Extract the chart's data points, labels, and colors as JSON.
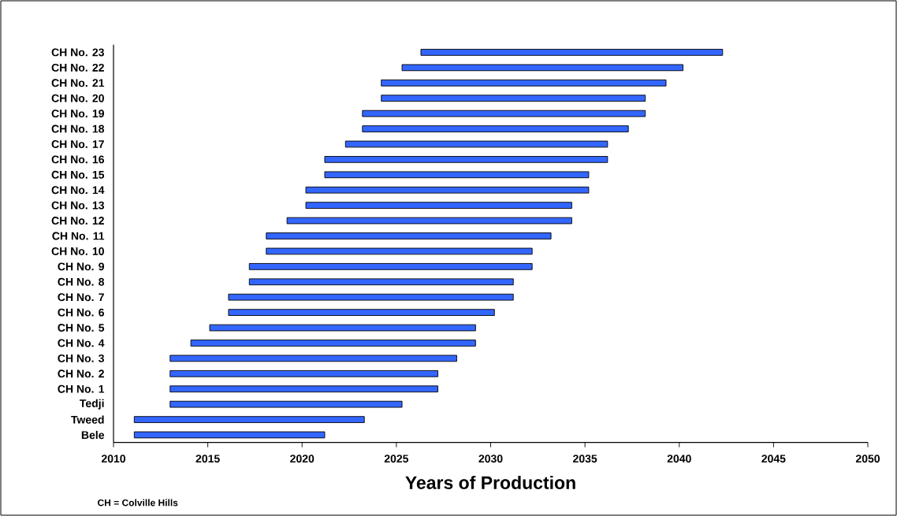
{
  "chart_data": {
    "type": "bar",
    "orientation": "horizontal",
    "xlabel": "Years of Production",
    "annotations": [
      "CH = Colville Hills"
    ],
    "color": "#3366ff",
    "categories": [
      "CH No. 23",
      "CH No. 22",
      "CH No. 21",
      "CH No. 20",
      "CH No. 19",
      "CH No. 18",
      "CH No. 17",
      "CH No. 16",
      "CH No. 15",
      "CH No. 14",
      "CH No. 13",
      "CH No. 12",
      "CH No. 11",
      "CH No. 10",
      "CH No. 9",
      "CH No. 8",
      "CH No. 7",
      "CH No. 6",
      "CH No. 5",
      "CH No. 4",
      "CH No. 3",
      "CH No. 2",
      "CH No. 1",
      "Tedji",
      "Tweed",
      "Bele"
    ],
    "base": [
      2026.3,
      2025.3,
      2024.2,
      2024.2,
      2023.2,
      2023.2,
      2022.3,
      2021.2,
      2021.2,
      2020.2,
      2020.2,
      2019.2,
      2018.1,
      2018.1,
      2017.2,
      2017.2,
      2016.1,
      2016.1,
      2015.1,
      2014.1,
      2013.0,
      2013.0,
      2013.0,
      2013.0,
      2011.1,
      2011.1
    ],
    "values": [
      16.0,
      14.9,
      15.1,
      14.0,
      15.0,
      14.1,
      13.9,
      15.0,
      14.0,
      15.0,
      14.1,
      15.1,
      15.1,
      14.1,
      15.0,
      14.0,
      15.1,
      14.1,
      14.1,
      15.1,
      15.2,
      14.2,
      14.2,
      12.3,
      12.2,
      10.1
    ],
    "xlim": [
      2010,
      2050
    ],
    "xticks": [
      2010,
      2015,
      2020,
      2025,
      2030,
      2035,
      2040,
      2045,
      2050
    ]
  }
}
